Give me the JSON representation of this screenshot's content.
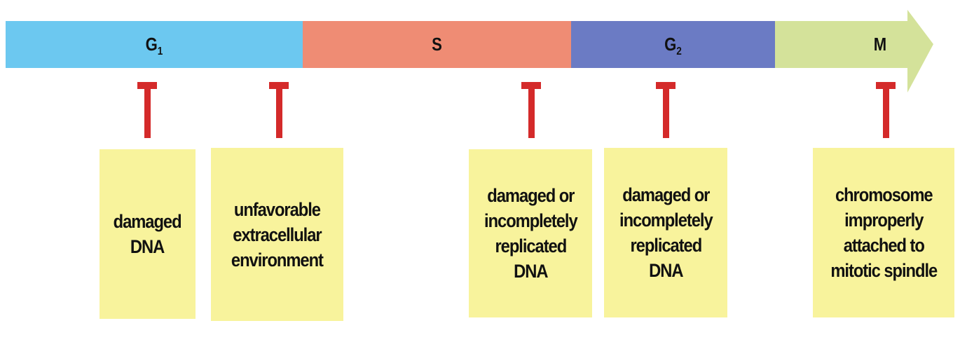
{
  "phases": [
    {
      "label": "G",
      "sub": "1",
      "color": "#6cc8f0"
    },
    {
      "label": "S",
      "sub": "",
      "color": "#ef8c74"
    },
    {
      "label": "G",
      "sub": "2",
      "color": "#6b7bc4"
    },
    {
      "label": "M",
      "sub": "",
      "color": "#d4e29a"
    }
  ],
  "checkpoint_color": "#d42a2a",
  "box_color": "#f8f39c",
  "checkpoints": [
    {
      "text": "damaged\nDNA"
    },
    {
      "text": "unfavorable\nextracellular\nenvironment"
    },
    {
      "text": "damaged or\nincompletely\nreplicated\nDNA"
    },
    {
      "text": "damaged or\nincompletely\nreplicated\nDNA"
    },
    {
      "text": "chromosome\nimproperly\nattached to\nmitotic spindle"
    }
  ]
}
